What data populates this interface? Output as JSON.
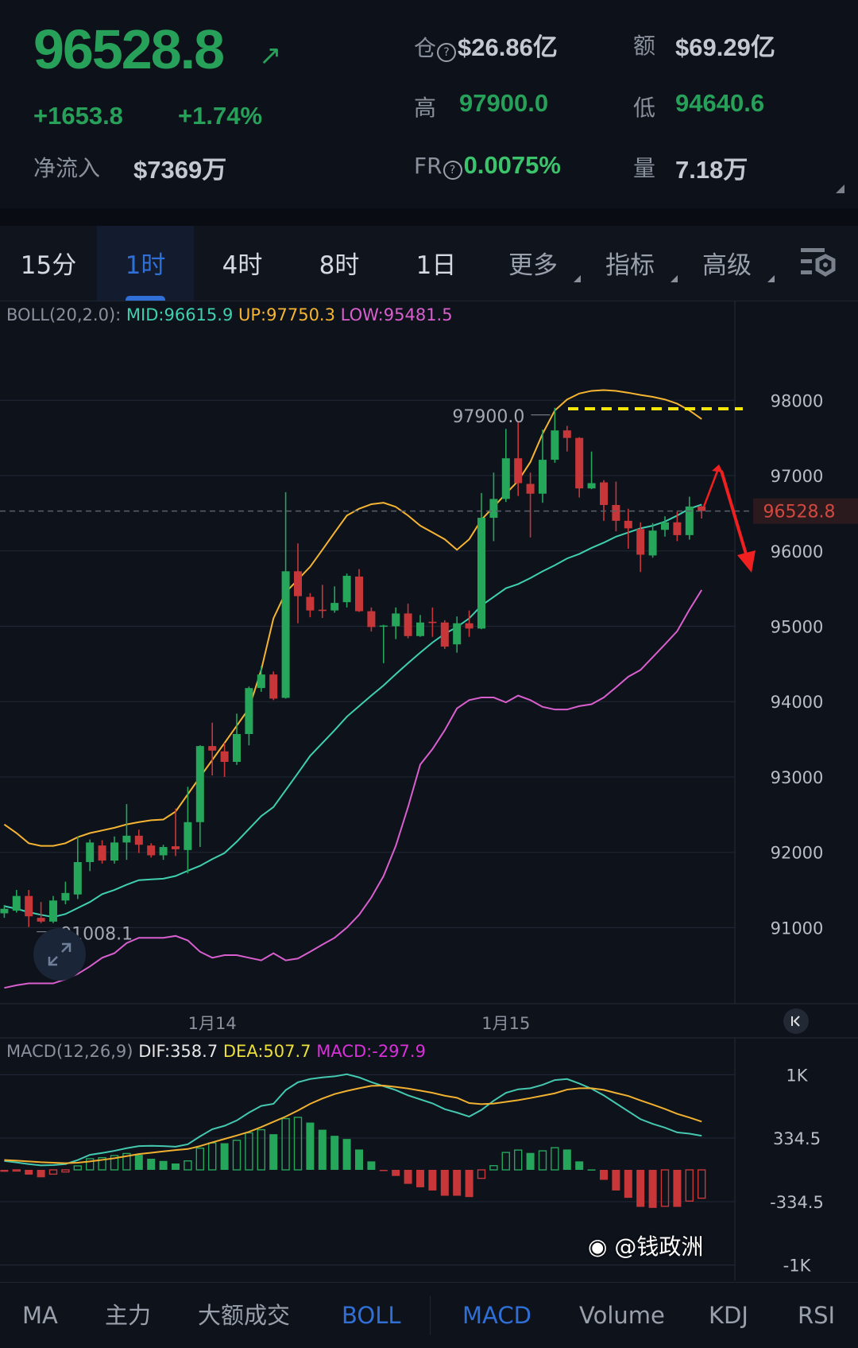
{
  "header": {
    "price": "96528.8",
    "trend_icon": "arrow-up-right-icon",
    "change": "+1653.8",
    "change_pct": "+1.74%",
    "netflow_label": "净流入",
    "netflow_value": "$7369万",
    "open_interest_label": "仓",
    "open_interest_value": "$26.86亿",
    "turnover_label": "额",
    "turnover_value": "$69.29亿",
    "high_label": "高",
    "high_value": "97900.0",
    "low_label": "低",
    "low_value": "94640.6",
    "fr_label": "FR",
    "fr_value": "0.0075%",
    "volume_label": "量",
    "volume_value": "7.18万",
    "help_glyph": "?"
  },
  "tabs": [
    {
      "label": "15分"
    },
    {
      "label": "1时",
      "active": true
    },
    {
      "label": "4时"
    },
    {
      "label": "8时"
    },
    {
      "label": "1日"
    },
    {
      "label": "更多",
      "dropdown": true
    },
    {
      "label": "指标",
      "dropdown": true
    },
    {
      "label": "高级",
      "dropdown": true
    }
  ],
  "settings_icon": "chart-settings-icon",
  "boll_legend": {
    "name": "BOLL(20,2.0):",
    "mid": "MID:96615.9",
    "up": "UP:97750.3",
    "low": "LOW:95481.5"
  },
  "macd_legend": {
    "name": "MACD(12,26,9)",
    "dif": "DIF:358.7",
    "dea": "DEA:507.7",
    "macd": "MACD:-297.9"
  },
  "bottom_tabs": [
    {
      "label": "MA"
    },
    {
      "label": "主力"
    },
    {
      "label": "大额成交"
    },
    {
      "label": "BOLL",
      "active": true
    },
    {
      "label": "MACD",
      "active": true
    },
    {
      "label": "Volume"
    },
    {
      "label": "KDJ"
    },
    {
      "label": "RSI"
    }
  ],
  "watermark": "@钱政洲",
  "colors": {
    "up": "#26a65b",
    "down": "#c7373a",
    "mid": "#3fd0b0",
    "upper": "#f5b532",
    "lower": "#d95fcf",
    "dif": "#44c8b0",
    "dea": "#f0b030",
    "accent": "#2f6fd6"
  },
  "chart_data": [
    {
      "type": "candlestick",
      "interval": "1时",
      "y_ticks": [
        98000,
        97000,
        96000,
        95000,
        94000,
        93000,
        92000,
        91000
      ],
      "y_tick_labels": [
        "98000",
        "97000",
        "96000",
        "95000",
        "94000",
        "93000",
        "92000",
        "91000"
      ],
      "x_labels": [
        {
          "label": "1月14",
          "candle": 17
        },
        {
          "label": "1月15",
          "candle": 41
        }
      ],
      "last_price": 96528.8,
      "last_price_label": "96528.8",
      "max_marker": {
        "label": "97900.0",
        "candle": 45,
        "value": 97900.0
      },
      "min_marker": {
        "label": "91008.1",
        "candle": 2,
        "value": 91008.1
      },
      "candles_ohlc": [
        [
          91190,
          91300,
          91130,
          91250
        ],
        [
          91225,
          91500,
          91200,
          91420
        ],
        [
          91420,
          91500,
          91008.1,
          91150
        ],
        [
          91130,
          91340,
          91060,
          91080
        ],
        [
          91080,
          91420,
          91060,
          91360
        ],
        [
          91360,
          91610,
          91310,
          91460
        ],
        [
          91440,
          92210,
          91380,
          91870
        ],
        [
          91870,
          92170,
          91750,
          92130
        ],
        [
          92090,
          92160,
          91850,
          91890
        ],
        [
          91890,
          92210,
          91850,
          92130
        ],
        [
          92130,
          92640,
          91900,
          92220
        ],
        [
          92220,
          92300,
          91990,
          92100
        ],
        [
          92090,
          92120,
          91930,
          91960
        ],
        [
          91960,
          92100,
          91900,
          92070
        ],
        [
          92080,
          92580,
          91950,
          92040
        ],
        [
          92030,
          92870,
          91720,
          92400
        ],
        [
          92400,
          93420,
          92070,
          93410
        ],
        [
          93410,
          93720,
          93020,
          93350
        ],
        [
          93340,
          93450,
          93000,
          93200
        ],
        [
          93200,
          93840,
          93160,
          93570
        ],
        [
          93570,
          94200,
          93420,
          94180
        ],
        [
          94180,
          94470,
          94130,
          94360
        ],
        [
          94360,
          94400,
          94020,
          94040
        ],
        [
          94050,
          96780,
          94040,
          95730
        ],
        [
          95730,
          96100,
          95040,
          95400
        ],
        [
          95390,
          95440,
          95120,
          95210
        ],
        [
          95220,
          95550,
          95110,
          95210
        ],
        [
          95210,
          95530,
          95180,
          95310
        ],
        [
          95320,
          95700,
          95250,
          95670
        ],
        [
          95660,
          95760,
          95190,
          95200
        ],
        [
          95200,
          95250,
          94930,
          94990
        ],
        [
          95000,
          95020,
          94510,
          95010
        ],
        [
          95000,
          95250,
          94830,
          95170
        ],
        [
          95170,
          95300,
          94840,
          94870
        ],
        [
          94870,
          95150,
          94860,
          95050
        ],
        [
          95060,
          95250,
          94860,
          95050
        ],
        [
          95050,
          95080,
          94700,
          94730
        ],
        [
          94760,
          95130,
          94650,
          95040
        ],
        [
          95040,
          95210,
          94860,
          94970
        ],
        [
          94970,
          96770,
          94960,
          96440
        ],
        [
          96440,
          97040,
          96130,
          96690
        ],
        [
          96690,
          97620,
          96650,
          97230
        ],
        [
          97230,
          97720,
          96730,
          96900
        ],
        [
          96890,
          97040,
          96180,
          96760
        ],
        [
          96760,
          97610,
          96640,
          97210
        ],
        [
          97210,
          97900,
          97170,
          97600
        ],
        [
          97600,
          97660,
          97320,
          97500
        ],
        [
          97500,
          97510,
          96710,
          96830
        ],
        [
          96830,
          97320,
          96820,
          96900
        ],
        [
          96910,
          96940,
          96400,
          96610
        ],
        [
          96610,
          96920,
          96260,
          96400
        ],
        [
          96400,
          96560,
          96030,
          96300
        ],
        [
          96290,
          96380,
          95720,
          95950
        ],
        [
          95940,
          96370,
          95910,
          96270
        ],
        [
          96280,
          96460,
          96190,
          96380
        ],
        [
          96380,
          96520,
          96130,
          96210
        ],
        [
          96210,
          96720,
          96150,
          96590
        ],
        [
          96590,
          96600,
          96430,
          96528.8
        ]
      ],
      "boll_mid": [
        91285,
        91250,
        91205,
        91170,
        91140,
        91180,
        91260,
        91340,
        91445,
        91500,
        91570,
        91630,
        91640,
        91650,
        91685,
        91755,
        91820,
        91910,
        91990,
        92140,
        92310,
        92480,
        92600,
        92825,
        93050,
        93280,
        93450,
        93620,
        93800,
        93940,
        94080,
        94215,
        94365,
        94510,
        94650,
        94785,
        94900,
        94990,
        95105,
        95275,
        95390,
        95505,
        95560,
        95640,
        95730,
        95810,
        95900,
        95960,
        96040,
        96110,
        96190,
        96245,
        96300,
        96335,
        96390,
        96470,
        96560,
        96615.9
      ],
      "boll_up": [
        92370,
        92255,
        92120,
        92085,
        92085,
        92120,
        92200,
        92255,
        92290,
        92325,
        92370,
        92400,
        92425,
        92435,
        92540,
        92770,
        93000,
        93225,
        93450,
        93680,
        93910,
        94420,
        95105,
        95450,
        95620,
        95790,
        96015,
        96245,
        96470,
        96560,
        96620,
        96640,
        96585,
        96470,
        96335,
        96245,
        96155,
        96015,
        96155,
        96415,
        96585,
        96760,
        96930,
        97180,
        97555,
        97865,
        98010,
        98090,
        98125,
        98135,
        98125,
        98100,
        98070,
        98045,
        98010,
        97955,
        97865,
        97750.3
      ],
      "boll_low": [
        90200,
        90235,
        90260,
        90260,
        90260,
        90315,
        90385,
        90485,
        90600,
        90660,
        90795,
        90865,
        90865,
        90865,
        90890,
        90830,
        90680,
        90600,
        90635,
        90635,
        90600,
        90565,
        90660,
        90565,
        90590,
        90680,
        90775,
        90865,
        91000,
        91170,
        91400,
        91685,
        92085,
        92600,
        93165,
        93370,
        93620,
        93910,
        94020,
        94055,
        94055,
        93990,
        94080,
        94020,
        93930,
        93895,
        93895,
        93940,
        93965,
        94055,
        94190,
        94330,
        94420,
        94590,
        94760,
        94935,
        95220,
        95481.5
      ]
    },
    {
      "type": "bar+line",
      "indicator": "MACD(12,26,9)",
      "y_ticks": [
        1000,
        334.5,
        -334.5,
        -1000
      ],
      "y_tick_labels": [
        "1K",
        "334.5",
        "-334.5",
        "-1K"
      ],
      "dif": [
        94,
        78,
        61,
        47,
        50,
        61,
        103,
        158,
        178,
        200,
        228,
        250,
        253,
        250,
        244,
        269,
        352,
        427,
        463,
        519,
        602,
        672,
        694,
        838,
        921,
        955,
        972,
        983,
        1005,
        972,
        922,
        880,
        839,
        783,
        741,
        699,
        638,
        602,
        560,
        630,
        727,
        810,
        847,
        858,
        894,
        944,
        955,
        908,
        853,
        783,
        699,
        616,
        533,
        483,
        444,
        394,
        380,
        358.7
      ],
      "dea": [
        103,
        97,
        89,
        80,
        75,
        70,
        75,
        89,
        105,
        122,
        144,
        166,
        180,
        194,
        208,
        219,
        250,
        289,
        325,
        361,
        400,
        450,
        505,
        560,
        624,
        694,
        750,
        797,
        830,
        858,
        883,
        886,
        872,
        855,
        833,
        810,
        780,
        758,
        702,
        691,
        697,
        715,
        733,
        755,
        780,
        805,
        844,
        858,
        858,
        841,
        808,
        777,
        730,
        686,
        640,
        589,
        550,
        507.7
      ],
      "macd": [
        -20,
        -10,
        -50,
        -78,
        -45,
        -22,
        42,
        117,
        128,
        150,
        172,
        158,
        117,
        94,
        67,
        94,
        228,
        283,
        280,
        311,
        389,
        422,
        375,
        539,
        552,
        497,
        422,
        358,
        325,
        214,
        89,
        -8,
        -64,
        -147,
        -183,
        -217,
        -272,
        -272,
        -286,
        -89,
        44,
        183,
        208,
        178,
        200,
        233,
        214,
        89,
        5,
        -105,
        -217,
        -294,
        -389,
        -400,
        -383,
        -389,
        -328,
        -297.9
      ]
    }
  ]
}
